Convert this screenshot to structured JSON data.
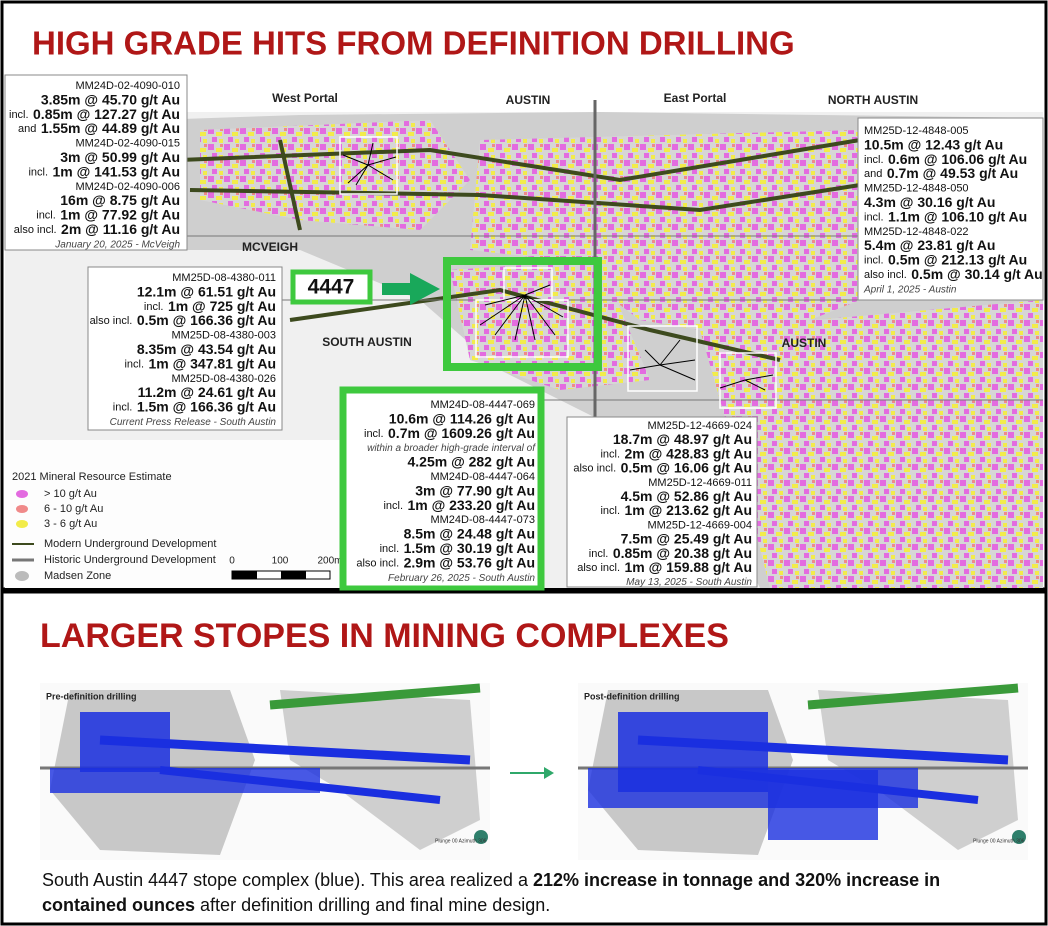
{
  "top": {
    "title": "HIGH GRADE HITS FROM DEFINITION DRILLING",
    "map_labels": [
      "West Portal",
      "AUSTIN",
      "East Portal",
      "NORTH AUSTIN",
      "MCVEIGH",
      "SOUTH AUSTIN",
      "AUSTIN"
    ],
    "stope_label": "4447",
    "callouts": [
      {
        "items": [
          {
            "id": "MM24D-02-4090-010"
          },
          {
            "hit": "3.85m @ 45.70 g/t Au"
          },
          {
            "pre": "incl.",
            "hit": "0.85m @ 127.27 g/t Au"
          },
          {
            "pre": "and",
            "hit": "1.55m @ 44.89 g/t Au"
          },
          {
            "id": "MM24D-02-4090-015"
          },
          {
            "hit": "3m @ 50.99 g/t Au"
          },
          {
            "pre": "incl.",
            "hit": "1m @ 141.53 g/t Au"
          },
          {
            "id": "MM24D-02-4090-006"
          },
          {
            "hit": "16m @ 8.75 g/t Au"
          },
          {
            "pre": "incl.",
            "hit": "1m @ 77.92 g/t Au"
          },
          {
            "pre": "also incl.",
            "hit": "2m @ 11.16 g/t Au"
          },
          {
            "note": "January 20, 2025 - McVeigh"
          }
        ]
      },
      {
        "items": [
          {
            "id": "MM25D-08-4380-011"
          },
          {
            "hit": "12.1m @ 61.51 g/t Au"
          },
          {
            "pre": "incl.",
            "hit": "1m @ 725 g/t Au"
          },
          {
            "pre": "also incl.",
            "hit": "0.5m @ 166.36 g/t Au"
          },
          {
            "id": "MM25D-08-4380-003"
          },
          {
            "hit": "8.35m @ 43.54 g/t Au"
          },
          {
            "pre": "incl.",
            "hit": "1m @ 347.81 g/t Au"
          },
          {
            "id": "MM25D-08-4380-026"
          },
          {
            "hit": "11.2m @ 24.61 g/t Au"
          },
          {
            "pre": "incl.",
            "hit": "1.5m @ 166.36 g/t Au"
          },
          {
            "note": "Current Press Release - South Austin"
          }
        ]
      },
      {
        "items": [
          {
            "id": "MM24D-08-4447-069"
          },
          {
            "hit": "10.6m @ 114.26 g/t Au"
          },
          {
            "pre": "incl.",
            "hit": "0.7m @ 1609.26 g/t Au"
          },
          {
            "note": "within a broader high-grade interval of"
          },
          {
            "hit": "4.25m @ 282 g/t Au"
          },
          {
            "id": "MM24D-08-4447-064"
          },
          {
            "hit": "3m @ 77.90 g/t Au"
          },
          {
            "pre": "incl.",
            "hit": "1m @ 233.20 g/t Au"
          },
          {
            "id": "MM24D-08-4447-073"
          },
          {
            "hit": "8.5m @ 24.48 g/t Au"
          },
          {
            "pre": "incl.",
            "hit": "1.5m @ 30.19 g/t Au"
          },
          {
            "pre": "also incl.",
            "hit": "2.9m @ 53.76 g/t Au"
          },
          {
            "note": "February 26, 2025 - South Austin"
          }
        ]
      },
      {
        "items": [
          {
            "id": "MM25D-12-4669-024"
          },
          {
            "hit": "18.7m @ 48.97 g/t Au"
          },
          {
            "pre": "incl.",
            "hit": "2m @ 428.83 g/t Au"
          },
          {
            "pre": "also incl.",
            "hit": "0.5m @ 16.06 g/t Au"
          },
          {
            "id": "MM25D-12-4669-011"
          },
          {
            "hit": "4.5m @ 52.86 g/t Au"
          },
          {
            "pre": "incl.",
            "hit": "1m @ 213.62 g/t Au"
          },
          {
            "id": "MM25D-12-4669-004"
          },
          {
            "hit": "7.5m @ 25.49 g/t Au"
          },
          {
            "pre": "incl.",
            "hit": "0.85m @ 20.38 g/t Au"
          },
          {
            "pre": "also incl.",
            "hit": "1m @ 159.88 g/t Au"
          },
          {
            "note": "May 13, 2025 - South Austin"
          }
        ]
      },
      {
        "items": [
          {
            "id": "MM25D-12-4848-005"
          },
          {
            "hit": "10.5m @ 12.43 g/t Au"
          },
          {
            "pre": "incl.",
            "hit": "0.6m @ 106.06 g/t Au"
          },
          {
            "pre": "and",
            "hit": "0.7m @ 49.53 g/t Au"
          },
          {
            "id": "MM25D-12-4848-050"
          },
          {
            "hit": "4.3m @ 30.16 g/t Au"
          },
          {
            "pre": "incl.",
            "hit": "1.1m @ 106.10 g/t Au"
          },
          {
            "id": "MM25D-12-4848-022"
          },
          {
            "hit": "5.4m @ 23.81 g/t Au"
          },
          {
            "pre": "incl.",
            "hit": "0.5m @ 212.13 g/t Au"
          },
          {
            "pre": "also incl.",
            "hit": "0.5m @ 30.14 g/t Au"
          },
          {
            "note": "April 1, 2025 - Austin"
          }
        ]
      }
    ],
    "legend": {
      "title": "2021 Mineral Resource Estimate",
      "items": [
        "> 10 g/t Au",
        "6 - 10 g/t Au",
        "3 - 6 g/t Au",
        "Modern Underground Development",
        "Historic Underground Development",
        "Madsen Zone"
      ]
    },
    "scale": [
      "0",
      "100",
      "200m"
    ]
  },
  "bottom": {
    "title": "LARGER STOPES IN MINING COMPLEXES",
    "panels": [
      {
        "label": "Pre-definition drilling",
        "orientation": "Plunge 00 Azimuth 306"
      },
      {
        "label": "Post-definition drilling",
        "orientation": "Plunge 00 Azimuth 306"
      }
    ],
    "caption": [
      "South Austin 4447 stope complex (blue). This area realized a",
      "212% increase in tonnage and 320% increase in contained ounces",
      "after definition drilling and final mine design."
    ]
  }
}
